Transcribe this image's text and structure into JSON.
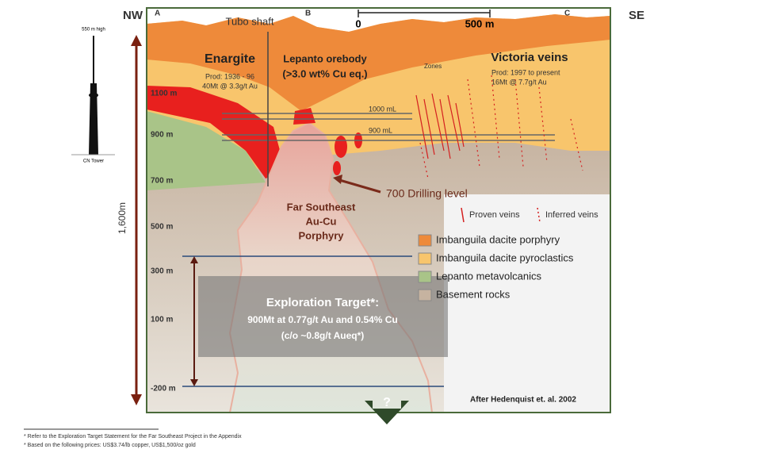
{
  "header": {
    "left": "NW",
    "right": "SE",
    "section_a": "A",
    "section_b": "B",
    "section_c": "C"
  },
  "scale": {
    "start": "0",
    "end": "500 m"
  },
  "tower": {
    "height": "550 m high",
    "name": "CN Tower"
  },
  "total_depth": "1,600m",
  "labels": {
    "shaft": "Tubo shaft",
    "enargite": {
      "title": "Enargite",
      "prod": "Prod: 1936 - 96",
      "grade": "40Mt @ 3.3g/t Au"
    },
    "lepanto": {
      "title": "Lepanto orebody",
      "grade": "(>3.0 wt% Cu eq.)"
    },
    "zones": "Zones",
    "victoria": {
      "title": "Victoria veins",
      "prod": "Prod: 1997 to present",
      "grade": "16Mt @ 7.7g/t Au"
    },
    "level_1000": "1000 mL",
    "level_900": "900 mL",
    "drilling": "700  Drilling level",
    "porphyry": [
      "Far Southeast",
      "Au-Cu",
      "Porphyry"
    ],
    "proven": "Proven veins",
    "inferred": "Inferred veins",
    "credit": "After Hedenquist et. al. 2002",
    "question": "?"
  },
  "elevations": [
    "1100 m",
    "900 m",
    "700 m",
    "500 m",
    "300 m",
    "100 m",
    "-200 m"
  ],
  "legend": [
    {
      "label": "Imbanguila dacite porphyry",
      "color": "#ee8a3a"
    },
    {
      "label": "Imbanguila dacite pyroclastics",
      "color": "#f8c56c"
    },
    {
      "label": "Lepanto metavolcanics",
      "color": "#a9c488"
    },
    {
      "label": "Basement rocks",
      "color": "#c6b3a0"
    }
  ],
  "target": {
    "title": "Exploration Target*:",
    "line1": "900Mt at 0.77g/t Au and 0.54% Cu",
    "line2": "(c/o ~0.8g/t Aueq*)"
  },
  "footnotes": [
    "* Refer to the Exploration Target Statement for the Far Southeast Project in the Appendix",
    "* Based on the following prices: US$3.74/lb copper, US$1,500/oz gold"
  ]
}
